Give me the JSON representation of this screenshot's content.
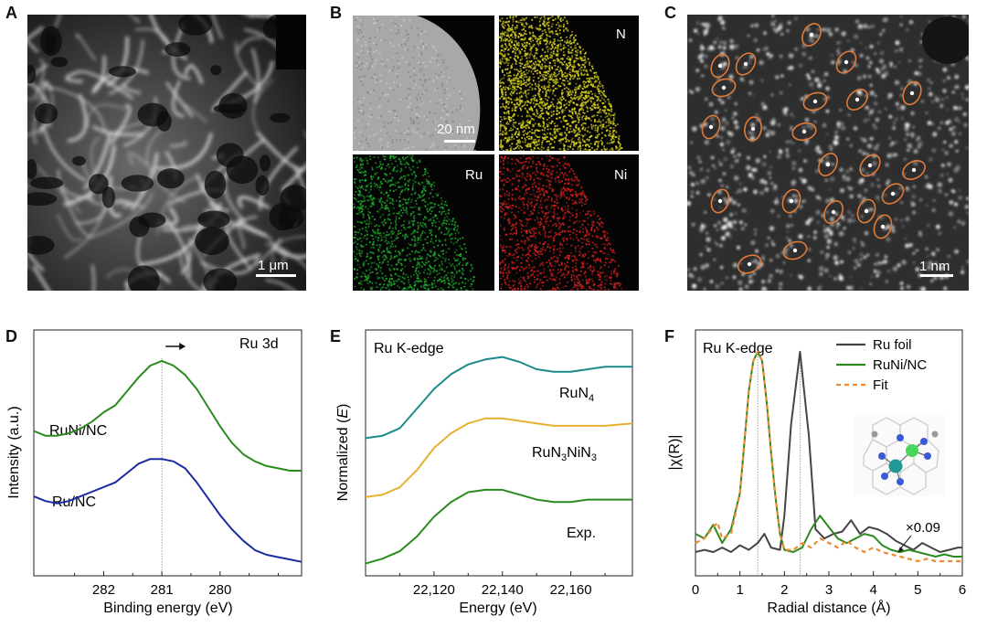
{
  "panels": {
    "A": {
      "letter": "A",
      "scale": "1 μm"
    },
    "B": {
      "letter": "B",
      "scale": "20 nm",
      "maps": [
        "N",
        "Ru",
        "Ni"
      ],
      "colors": {
        "N": "#d8d21e",
        "Ru": "#1faa2a",
        "Ni": "#d41e1e"
      }
    },
    "C": {
      "letter": "C",
      "scale": "1 nm",
      "highlight_color": "#e07b39"
    },
    "D": {
      "letter": "D",
      "title": "Ru 3d",
      "xlabel": "Binding energy (eV)",
      "ylabel": "Intensity (a.u.)",
      "series_labels": [
        "RuNi/NC",
        "Ru/NC"
      ]
    },
    "E": {
      "letter": "E",
      "title": "Ru K-edge",
      "xlabel": "Energy (eV)",
      "ylabel": "Normalized (E)",
      "series_labels": [
        "RuN",
        "RuN",
        "NiN",
        "Exp."
      ]
    },
    "F": {
      "letter": "F",
      "title": "Ru K-edge",
      "xlabel": "Radial distance (Å)",
      "ylabel": "|χ(R)|",
      "legend": [
        "Ru foil",
        "RuNi/NC",
        "Fit"
      ],
      "annotation": "×0.09"
    }
  },
  "chart_data": [
    {
      "type": "line",
      "title": "Ru 3d",
      "xlabel": "Binding energy (eV)",
      "ylabel": "Intensity (a.u.)",
      "xlim": [
        283.2,
        278.6
      ],
      "xticks": [
        "282",
        "281",
        "280"
      ],
      "reference_line_x": 281.0,
      "series": [
        {
          "name": "RuNi/NC",
          "color": "#2a8a1e",
          "x": [
            283.2,
            283.0,
            282.8,
            282.6,
            282.4,
            282.2,
            282.0,
            281.8,
            281.6,
            281.4,
            281.2,
            281.0,
            280.8,
            280.6,
            280.4,
            280.2,
            280.0,
            279.8,
            279.6,
            279.4,
            279.2,
            279.0,
            278.8,
            278.6
          ],
          "y": [
            0.62,
            0.6,
            0.6,
            0.61,
            0.63,
            0.66,
            0.7,
            0.73,
            0.79,
            0.85,
            0.9,
            0.92,
            0.9,
            0.86,
            0.8,
            0.72,
            0.64,
            0.57,
            0.52,
            0.49,
            0.47,
            0.46,
            0.45,
            0.45
          ]
        },
        {
          "name": "Ru/NC",
          "color": "#1a2aa0",
          "x": [
            283.2,
            283.0,
            282.8,
            282.6,
            282.4,
            282.2,
            282.0,
            281.8,
            281.6,
            281.4,
            281.2,
            281.0,
            280.8,
            280.6,
            280.4,
            280.2,
            280.0,
            279.8,
            279.6,
            279.4,
            279.2,
            279.0,
            278.8,
            278.6
          ],
          "y": [
            0.34,
            0.32,
            0.31,
            0.32,
            0.34,
            0.36,
            0.38,
            0.4,
            0.44,
            0.48,
            0.5,
            0.5,
            0.49,
            0.46,
            0.4,
            0.33,
            0.26,
            0.2,
            0.15,
            0.11,
            0.09,
            0.08,
            0.07,
            0.06
          ]
        }
      ]
    },
    {
      "type": "line",
      "title": "Ru K-edge",
      "xlabel": "Energy (eV)",
      "ylabel": "Normalized (E)",
      "xlim": [
        22100,
        22178
      ],
      "xticks": [
        "22,120",
        "22,140",
        "22,160"
      ],
      "series": [
        {
          "name": "RuN4",
          "color": "#1c8a8a",
          "x": [
            22100,
            22105,
            22110,
            22115,
            22120,
            22125,
            22130,
            22135,
            22140,
            22145,
            22150,
            22155,
            22160,
            22165,
            22170,
            22178
          ],
          "y": [
            0.56,
            0.57,
            0.6,
            0.68,
            0.76,
            0.82,
            0.86,
            0.88,
            0.89,
            0.87,
            0.84,
            0.83,
            0.83,
            0.84,
            0.85,
            0.85
          ]
        },
        {
          "name": "RuN3NiN3",
          "color": "#e6b030",
          "x": [
            22100,
            22105,
            22110,
            22115,
            22120,
            22125,
            22130,
            22135,
            22140,
            22145,
            22150,
            22155,
            22160,
            22165,
            22170,
            22178
          ],
          "y": [
            0.32,
            0.33,
            0.36,
            0.43,
            0.52,
            0.58,
            0.62,
            0.64,
            0.64,
            0.63,
            0.62,
            0.61,
            0.61,
            0.61,
            0.61,
            0.62
          ]
        },
        {
          "name": "Exp.",
          "color": "#2a8a1e",
          "x": [
            22100,
            22105,
            22110,
            22115,
            22120,
            22125,
            22130,
            22135,
            22140,
            22145,
            22150,
            22155,
            22160,
            22165,
            22170,
            22178
          ],
          "y": [
            0.05,
            0.07,
            0.1,
            0.16,
            0.24,
            0.3,
            0.34,
            0.35,
            0.35,
            0.33,
            0.31,
            0.3,
            0.3,
            0.31,
            0.31,
            0.31
          ]
        }
      ]
    },
    {
      "type": "line",
      "title": "Ru K-edge",
      "xlabel": "Radial distance (Å)",
      "ylabel": "|χ(R)|",
      "xlim": [
        0,
        6
      ],
      "xticks": [
        "0",
        "1",
        "2",
        "3",
        "4",
        "5",
        "6"
      ],
      "reference_lines_x": [
        1.4,
        2.35
      ],
      "series": [
        {
          "name": "Ru foil",
          "color": "#444444",
          "x": [
            0,
            0.2,
            0.4,
            0.6,
            0.8,
            1.0,
            1.2,
            1.4,
            1.55,
            1.7,
            1.9,
            2.0,
            2.15,
            2.35,
            2.55,
            2.7,
            2.9,
            3.1,
            3.3,
            3.5,
            3.7,
            3.9,
            4.1,
            4.3,
            4.5,
            4.7,
            4.9,
            5.1,
            5.3,
            5.5,
            5.7,
            5.9,
            6.0
          ],
          "y": [
            0.04,
            0.05,
            0.04,
            0.06,
            0.04,
            0.07,
            0.05,
            0.08,
            0.12,
            0.06,
            0.05,
            0.2,
            0.6,
            0.92,
            0.55,
            0.14,
            0.1,
            0.12,
            0.13,
            0.18,
            0.12,
            0.15,
            0.14,
            0.12,
            0.09,
            0.07,
            0.05,
            0.08,
            0.06,
            0.04,
            0.05,
            0.06,
            0.06
          ]
        },
        {
          "name": "RuNi/NC",
          "color": "#2a8a1e",
          "x": [
            0,
            0.2,
            0.4,
            0.6,
            0.8,
            1.0,
            1.1,
            1.2,
            1.3,
            1.4,
            1.5,
            1.6,
            1.7,
            1.8,
            1.9,
            2.0,
            2.2,
            2.4,
            2.6,
            2.8,
            3.0,
            3.2,
            3.4,
            3.6,
            3.8,
            4.0,
            4.2,
            4.4,
            4.6,
            4.8,
            5.0,
            5.2,
            5.4,
            5.6,
            5.8,
            6.0
          ],
          "y": [
            0.12,
            0.1,
            0.16,
            0.08,
            0.14,
            0.3,
            0.52,
            0.75,
            0.88,
            0.92,
            0.88,
            0.7,
            0.48,
            0.28,
            0.12,
            0.05,
            0.04,
            0.06,
            0.14,
            0.2,
            0.15,
            0.1,
            0.08,
            0.1,
            0.12,
            0.11,
            0.07,
            0.05,
            0.04,
            0.05,
            0.04,
            0.03,
            0.02,
            0.03,
            0.02,
            0.02
          ]
        },
        {
          "name": "Fit",
          "color": "#f08a30",
          "dashed": true,
          "x": [
            0,
            0.2,
            0.4,
            0.5,
            0.6,
            0.8,
            1.0,
            1.1,
            1.2,
            1.3,
            1.4,
            1.5,
            1.6,
            1.7,
            1.8,
            1.9,
            2.0,
            2.2,
            2.4,
            2.6,
            2.8,
            3.0,
            3.2,
            3.4,
            3.6,
            3.8,
            4.0,
            4.2,
            4.4,
            4.6,
            4.8,
            5.0,
            5.2,
            5.4,
            5.6,
            5.8,
            6.0
          ],
          "y": [
            0.08,
            0.1,
            0.15,
            0.17,
            0.1,
            0.12,
            0.3,
            0.52,
            0.75,
            0.88,
            0.92,
            0.88,
            0.7,
            0.48,
            0.28,
            0.12,
            0.05,
            0.05,
            0.08,
            0.06,
            0.1,
            0.08,
            0.06,
            0.09,
            0.06,
            0.04,
            0.06,
            0.04,
            0.03,
            0.02,
            0.01,
            0.0,
            0.01,
            0.0,
            0.0,
            0.0,
            0.0
          ]
        }
      ]
    }
  ]
}
